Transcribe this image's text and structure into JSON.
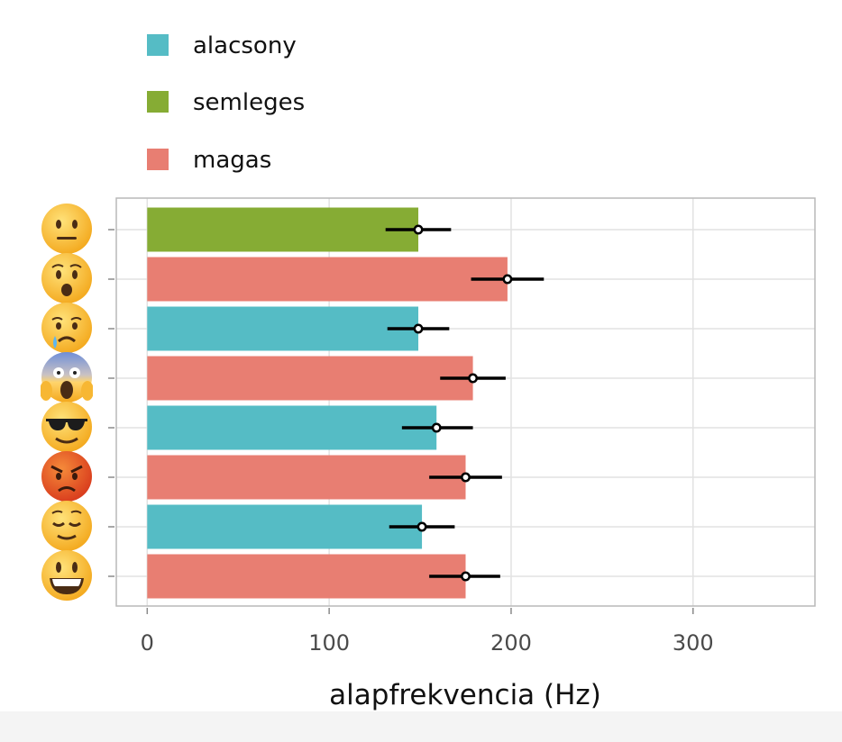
{
  "chart_data": {
    "type": "bar",
    "orientation": "horizontal",
    "xlabel": "alapfrekvencia (Hz)",
    "xlim": [
      -17,
      367
    ],
    "xticks": [
      0,
      100,
      200,
      300
    ],
    "grid": true,
    "legend_placement": "top-left",
    "legend": [
      {
        "key": "alacsony",
        "label": "alacsony",
        "color": "#55bcc5"
      },
      {
        "key": "semleges",
        "label": "semleges",
        "color": "#86ac34"
      },
      {
        "key": "magas",
        "label": "magas",
        "color": "#e87e72"
      }
    ],
    "categories": [
      {
        "emoji": "neutral-face-emoji",
        "group": "semleges",
        "value": 149,
        "ci": [
          131,
          167
        ]
      },
      {
        "emoji": "hushed-face-emoji",
        "group": "magas",
        "value": 198,
        "ci": [
          178,
          218
        ]
      },
      {
        "emoji": "sad-relieved-face-emoji",
        "group": "alacsony",
        "value": 149,
        "ci": [
          132,
          166
        ]
      },
      {
        "emoji": "screaming-in-fear-emoji",
        "group": "magas",
        "value": 179,
        "ci": [
          161,
          197
        ]
      },
      {
        "emoji": "sunglasses-face-emoji",
        "group": "alacsony",
        "value": 159,
        "ci": [
          140,
          179
        ]
      },
      {
        "emoji": "angry-face-emoji",
        "group": "magas",
        "value": 175,
        "ci": [
          155,
          195
        ]
      },
      {
        "emoji": "relieved-face-emoji",
        "group": "alacsony",
        "value": 151,
        "ci": [
          133,
          169
        ]
      },
      {
        "emoji": "grinning-face-emoji",
        "group": "magas",
        "value": 175,
        "ci": [
          155,
          194
        ]
      }
    ]
  }
}
